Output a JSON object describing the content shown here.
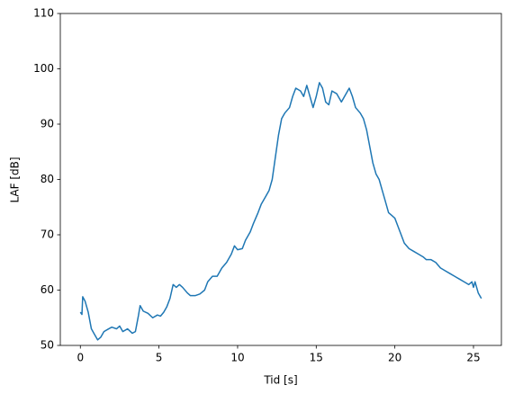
{
  "chart_data": {
    "type": "line",
    "xlabel": "Tid [s]",
    "ylabel": "LAF [dB]",
    "x": [
      0,
      0.1,
      0.15,
      0.3,
      0.5,
      0.7,
      0.9,
      1.1,
      1.3,
      1.5,
      1.8,
      2.0,
      2.3,
      2.5,
      2.7,
      3.0,
      3.3,
      3.5,
      3.7,
      3.8,
      4.0,
      4.3,
      4.6,
      4.9,
      5.1,
      5.3,
      5.5,
      5.7,
      5.9,
      6.1,
      6.3,
      6.5,
      6.8,
      7.0,
      7.3,
      7.6,
      7.9,
      8.1,
      8.4,
      8.7,
      9.0,
      9.3,
      9.6,
      9.8,
      10.0,
      10.3,
      10.5,
      10.8,
      11.0,
      11.3,
      11.5,
      11.8,
      12.0,
      12.2,
      12.4,
      12.6,
      12.8,
      13.0,
      13.3,
      13.5,
      13.7,
      14.0,
      14.2,
      14.4,
      14.6,
      14.8,
      15.0,
      15.2,
      15.4,
      15.6,
      15.8,
      16.0,
      16.3,
      16.6,
      16.9,
      17.1,
      17.3,
      17.5,
      17.8,
      18.0,
      18.2,
      18.4,
      18.6,
      18.8,
      19.0,
      19.2,
      19.4,
      19.6,
      19.8,
      20.0,
      20.2,
      20.4,
      20.6,
      20.9,
      21.2,
      21.5,
      21.8,
      22.0,
      22.3,
      22.6,
      22.9,
      23.2,
      23.5,
      23.8,
      24.1,
      24.4,
      24.7,
      24.9,
      25.0,
      25.1,
      25.3,
      25.5
    ],
    "values": [
      56,
      55.6,
      58.8,
      58,
      56,
      53,
      52,
      51,
      51.5,
      52.5,
      53,
      53.3,
      53,
      53.5,
      52.5,
      53,
      52.2,
      52.5,
      55.5,
      57.2,
      56.2,
      55.8,
      55,
      55.5,
      55.3,
      56,
      57,
      58.5,
      61,
      60.5,
      61,
      60.5,
      59.5,
      59,
      59,
      59.3,
      60,
      61.5,
      62.5,
      62.5,
      64,
      65,
      66.5,
      68,
      67.3,
      67.5,
      69,
      70.5,
      72,
      74,
      75.5,
      77,
      78,
      80,
      84,
      88,
      91,
      92,
      93,
      95,
      96.5,
      96,
      95,
      97,
      95,
      93,
      95,
      97.5,
      96.5,
      94,
      93.5,
      96,
      95.5,
      94,
      95.5,
      96.5,
      95,
      93,
      92,
      91,
      89,
      86,
      83,
      81,
      80,
      78,
      76,
      74,
      73.5,
      73,
      71.5,
      70,
      68.5,
      67.5,
      67,
      66.5,
      66,
      65.5,
      65.5,
      65,
      64,
      63.5,
      63,
      62.5,
      62,
      61.5,
      61,
      61.5,
      60.5,
      61.5,
      59.5,
      58.5
    ],
    "color": "#1f77b4",
    "xlim": [
      -1.275,
      26.775
    ],
    "xticks": [
      0,
      5,
      10,
      15,
      20,
      25
    ],
    "ylim": [
      50,
      110
    ],
    "yticks": [
      50,
      60,
      70,
      80,
      90,
      100,
      110
    ]
  }
}
